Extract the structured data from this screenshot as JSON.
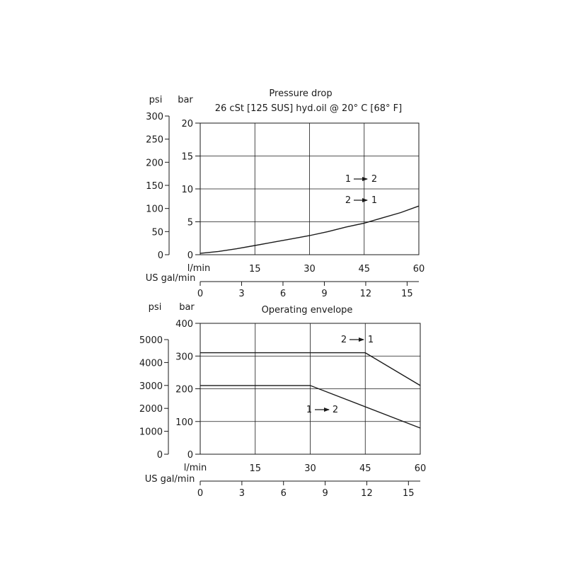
{
  "chart_data": [
    {
      "type": "line",
      "title": "Pressure drop",
      "subtitle": "26 cSt [125 SUS] hyd.oil @ 20° C [68° F]",
      "primary_unit_label": "bar",
      "secondary_unit_label": "psi",
      "x_unit_label": "l/min",
      "x_secondary_unit_label": "US gal/min",
      "xlim": [
        0,
        60
      ],
      "ylim": [
        0,
        20
      ],
      "x_ticks": [
        "15",
        "30",
        "45",
        "60"
      ],
      "x_zero_label": "0",
      "y_ticks": [
        "0",
        "5",
        "10",
        "15",
        "20"
      ],
      "psi_ticks": [
        "0",
        "50",
        "100",
        "150",
        "200",
        "250",
        "300"
      ],
      "gal_ticks": [
        "0",
        "3",
        "6",
        "9",
        "12",
        "15"
      ],
      "grid": true,
      "series": [
        {
          "x": [
            0,
            5,
            10,
            15,
            20,
            25,
            30,
            35,
            40,
            45,
            50,
            55,
            60
          ],
          "values": [
            0.2,
            0.5,
            0.9,
            1.4,
            1.9,
            2.4,
            2.9,
            3.5,
            4.2,
            4.8,
            5.6,
            6.4,
            7.4
          ]
        }
      ],
      "annotations": [
        {
          "from": "1",
          "to": "2"
        },
        {
          "from": "2",
          "to": "1"
        }
      ]
    },
    {
      "type": "line",
      "title": "Operating envelope",
      "primary_unit_label": "bar",
      "secondary_unit_label": "psi",
      "x_unit_label": "l/min",
      "x_secondary_unit_label": "US gal/min",
      "xlim": [
        0,
        60
      ],
      "ylim": [
        0,
        400
      ],
      "x_ticks": [
        "15",
        "30",
        "45",
        "60"
      ],
      "y_ticks": [
        "0",
        "100",
        "200",
        "300",
        "400"
      ],
      "psi_ticks": [
        "0",
        "1000",
        "2000",
        "3000",
        "4000",
        "5000"
      ],
      "gal_ticks": [
        "0",
        "3",
        "6",
        "9",
        "12",
        "15"
      ],
      "grid": true,
      "series": [
        {
          "x": [
            0,
            45,
            60
          ],
          "values": [
            310,
            310,
            210
          ],
          "annotation": {
            "from": "2",
            "to": "1"
          }
        },
        {
          "x": [
            0,
            30,
            60
          ],
          "values": [
            210,
            210,
            80
          ],
          "annotation": {
            "from": "1",
            "to": "2"
          }
        }
      ]
    }
  ]
}
